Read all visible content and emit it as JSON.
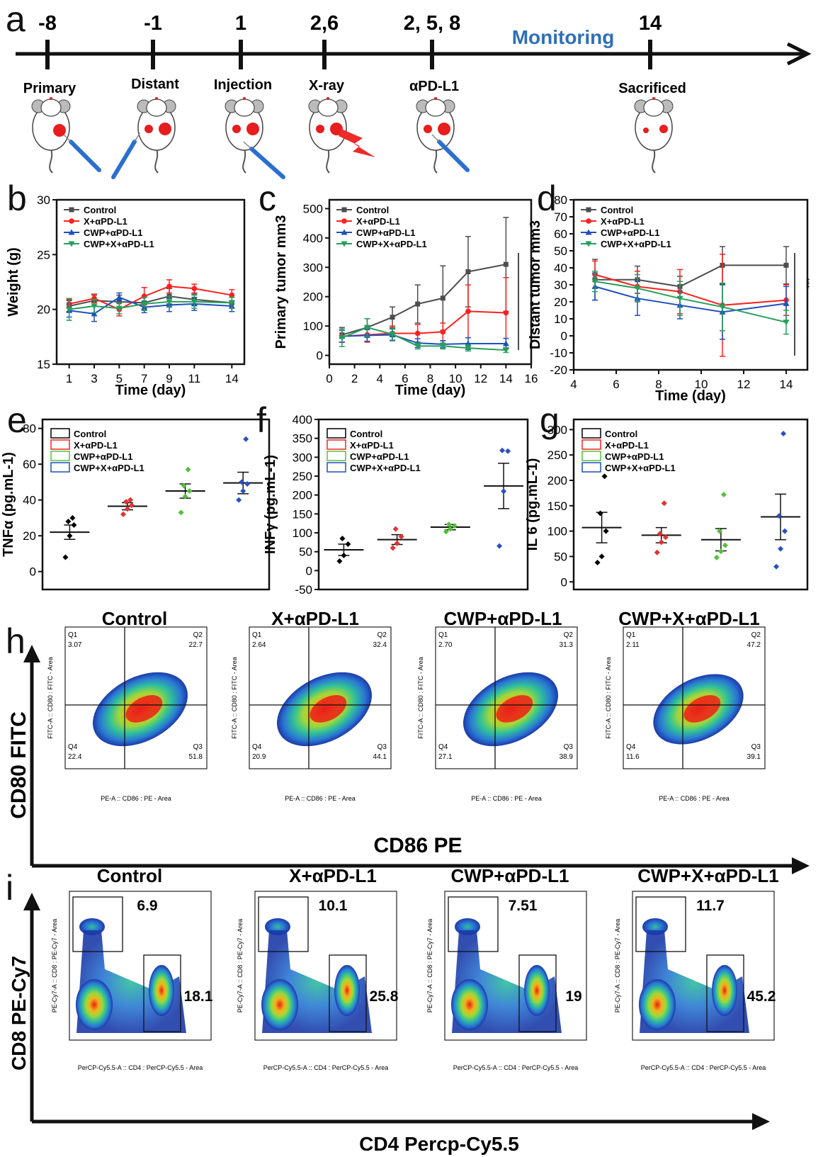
{
  "colors": {
    "control": "#4d4d4d",
    "x_apdl1": "#ff2020",
    "cwp_apdl1": "#1f4fbf",
    "cwp_x_apdl1": "#24a05a",
    "scatter_control": "#000000",
    "scatter_x": "#e53030",
    "scatter_cwp": "#55c03c",
    "scatter_cwpx": "#2c4fc0",
    "timeline_monitoring": "#2f6fb7"
  },
  "panels": {
    "a": {
      "letter": "a",
      "monitoring": "Monitoring",
      "events": [
        {
          "time": "-8",
          "label": "Primary"
        },
        {
          "time": "-1",
          "label": "Distant"
        },
        {
          "time": "1",
          "label": "Injection"
        },
        {
          "time": "2,6",
          "label": "X-ray"
        },
        {
          "time": "2, 5, 8",
          "label": "αPD-L1"
        },
        {
          "time": "14",
          "label": "Sacrificed"
        }
      ]
    },
    "h": {
      "letter": "h",
      "y_title": "CD80  FITC",
      "x_title": "CD86  PE",
      "x_axis_label": "PE-A :: CD86 : PE - Area",
      "y_axis_label": "FITC-A :: CD80 : FITC - Area",
      "quadrant_labels": [
        "Q1",
        "Q2",
        "Q3",
        "Q4"
      ]
    },
    "i": {
      "letter": "i",
      "y_title": "CD8 PE-Cy7",
      "x_title": "CD4 Percp-Cy5.5",
      "x_axis_label": "PerCP-Cy5.5-A :: CD4 : PerCP-Cy5.5 - Area",
      "y_axis_label": "PE-Cy7-A :: CD8 : PE-Cy7 - Area"
    }
  },
  "chart_data": [
    {
      "id": "b",
      "letter": "b",
      "type": "line",
      "xlabel": "Time (day)",
      "ylabel": "Weight (g)",
      "xlim": [
        0,
        15
      ],
      "ylim": [
        15,
        30
      ],
      "xticks": [
        1,
        3,
        5,
        7,
        9,
        11,
        14
      ],
      "yticks": [
        15,
        20,
        25,
        30
      ],
      "legend": "top-left",
      "series": [
        {
          "name": "Control",
          "marker": "square",
          "color": "#4d4d4d",
          "x": [
            1,
            3,
            5,
            7,
            9,
            11,
            14
          ],
          "y": [
            20.3,
            20.8,
            20.7,
            20.6,
            21.2,
            20.9,
            20.6
          ],
          "err": [
            0.5,
            0.5,
            0.6,
            0.6,
            0.7,
            0.5,
            0.5
          ]
        },
        {
          "name": "X+αPD-L1",
          "marker": "circle",
          "color": "#ff2020",
          "x": [
            1,
            3,
            5,
            7,
            9,
            11,
            14
          ],
          "y": [
            20.5,
            21.0,
            20.0,
            21.2,
            22.1,
            21.9,
            21.3
          ],
          "err": [
            0.4,
            0.4,
            0.6,
            0.8,
            0.6,
            0.4,
            0.5
          ]
        },
        {
          "name": "CWP+αPD-L1",
          "marker": "triangle",
          "color": "#1f4fbf",
          "x": [
            1,
            3,
            5,
            7,
            9,
            11,
            14
          ],
          "y": [
            19.9,
            19.6,
            21.1,
            20.2,
            20.4,
            20.5,
            20.3
          ],
          "err": [
            0.6,
            0.7,
            0.4,
            0.5,
            0.6,
            0.6,
            0.5
          ]
        },
        {
          "name": "CWP+X+αPD-L1",
          "marker": "tri-down",
          "color": "#24a05a",
          "x": [
            1,
            3,
            5,
            7,
            9,
            11,
            14
          ],
          "y": [
            20.0,
            20.3,
            20.1,
            20.5,
            20.7,
            20.7,
            20.6
          ],
          "err": [
            1.0,
            0.6,
            0.5,
            0.6,
            0.5,
            0.6,
            0.5
          ]
        }
      ]
    },
    {
      "id": "c",
      "letter": "c",
      "type": "line",
      "xlabel": "Time (day)",
      "ylabel": "Primary tumor mm3",
      "xlim": [
        0,
        16
      ],
      "ylim": [
        -30,
        530
      ],
      "xticks": [
        0,
        2,
        4,
        6,
        8,
        10,
        12,
        14,
        16
      ],
      "yticks": [
        0,
        100,
        200,
        300,
        400,
        500
      ],
      "annotation": "***",
      "legend": "top-left",
      "series": [
        {
          "name": "Control",
          "marker": "square",
          "color": "#4d4d4d",
          "x": [
            1,
            3,
            5,
            7,
            9,
            11,
            14
          ],
          "y": [
            70,
            95,
            130,
            175,
            195,
            285,
            310
          ],
          "err": [
            25,
            30,
            35,
            65,
            110,
            120,
            160
          ]
        },
        {
          "name": "X+αPD-L1",
          "marker": "circle",
          "color": "#ff2020",
          "x": [
            1,
            3,
            5,
            7,
            9,
            11,
            14
          ],
          "y": [
            65,
            70,
            75,
            75,
            80,
            150,
            145
          ],
          "err": [
            20,
            25,
            25,
            30,
            30,
            90,
            120
          ]
        },
        {
          "name": "CWP+αPD-L1",
          "marker": "triangle",
          "color": "#1f4fbf",
          "x": [
            1,
            3,
            5,
            7,
            9,
            11,
            14
          ],
          "y": [
            65,
            68,
            70,
            42,
            38,
            40,
            40
          ],
          "err": [
            20,
            20,
            20,
            15,
            12,
            20,
            18
          ]
        },
        {
          "name": "CWP+X+αPD-L1",
          "marker": "tri-down",
          "color": "#24a05a",
          "x": [
            1,
            3,
            5,
            7,
            9,
            11,
            14
          ],
          "y": [
            60,
            95,
            72,
            32,
            32,
            25,
            18
          ],
          "err": [
            30,
            30,
            20,
            10,
            10,
            10,
            8
          ]
        }
      ]
    },
    {
      "id": "d",
      "letter": "d",
      "type": "line",
      "xlabel": "Time (day)",
      "ylabel": "Distant tumor mm3",
      "xlim": [
        4,
        15
      ],
      "ylim": [
        -20,
        80
      ],
      "xticks": [
        4,
        6,
        8,
        10,
        12,
        14
      ],
      "yticks": [
        -20,
        -10,
        0,
        10,
        20,
        30,
        40,
        50,
        60,
        70,
        80
      ],
      "annotation": "***",
      "legend": "top-left",
      "series": [
        {
          "name": "Control",
          "marker": "square",
          "color": "#4d4d4d",
          "x": [
            5,
            7,
            9,
            11,
            14
          ],
          "y": [
            33,
            33,
            29,
            41.5,
            41.5
          ],
          "err": [
            12,
            8,
            6,
            11,
            11
          ]
        },
        {
          "name": "X+αPD-L1",
          "marker": "circle",
          "color": "#ff2020",
          "x": [
            5,
            7,
            9,
            11,
            14
          ],
          "y": [
            36,
            29,
            26,
            18,
            21
          ],
          "err": [
            8,
            9,
            13,
            30,
            9
          ]
        },
        {
          "name": "CWP+αPD-L1",
          "marker": "triangle",
          "color": "#1f4fbf",
          "x": [
            5,
            7,
            9,
            11,
            14
          ],
          "y": [
            29,
            22,
            18,
            14,
            19
          ],
          "err": [
            8,
            10,
            8,
            16,
            10
          ]
        },
        {
          "name": "CWP+X+αPD-L1",
          "marker": "tri-down",
          "color": "#24a05a",
          "x": [
            5,
            7,
            9,
            11,
            14
          ],
          "y": [
            32,
            28,
            22,
            17,
            8
          ],
          "err": [
            6,
            8,
            10,
            14,
            7
          ]
        }
      ]
    },
    {
      "id": "e",
      "letter": "e",
      "type": "scatter",
      "ylabel": "TNFα (pg.mL-1)",
      "ylim": [
        -10,
        85
      ],
      "yticks": [
        0,
        20,
        40,
        60,
        80
      ],
      "legend": "top-left",
      "groups": [
        {
          "name": "Control",
          "color": "#000000",
          "mean": 22,
          "sem": 4,
          "points": [
            8,
            20,
            26,
            28,
            30
          ]
        },
        {
          "name": "X+αPD-L1",
          "color": "#e53030",
          "mean": 36.5,
          "sem": 2,
          "points": [
            32,
            35,
            37,
            39,
            40
          ]
        },
        {
          "name": "CWP+αPD-L1",
          "color": "#55c03c",
          "mean": 45,
          "sem": 4,
          "points": [
            33,
            42,
            45,
            48,
            57
          ]
        },
        {
          "name": "CWP+X+αPD-L1",
          "color": "#2c4fc0",
          "mean": 49.5,
          "sem": 6,
          "points": [
            40,
            45,
            49,
            50,
            74
          ]
        }
      ]
    },
    {
      "id": "f",
      "letter": "f",
      "type": "scatter",
      "ylabel": "INFγ (pg.mL-1)",
      "ylim": [
        -50,
        400
      ],
      "yticks": [
        -50,
        0,
        50,
        100,
        150,
        200,
        250,
        300,
        350,
        400
      ],
      "legend": "top-left",
      "groups": [
        {
          "name": "Control",
          "color": "#000000",
          "mean": 55,
          "sem": 15,
          "points": [
            25,
            40,
            70,
            85
          ]
        },
        {
          "name": "X+αPD-L1",
          "color": "#e53030",
          "mean": 82,
          "sem": 13,
          "points": [
            60,
            72,
            90,
            110
          ]
        },
        {
          "name": "CWP+αPD-L1",
          "color": "#55c03c",
          "mean": 115,
          "sem": 7,
          "points": [
            103,
            110,
            118,
            122
          ]
        },
        {
          "name": "CWP+X+αPD-L1",
          "color": "#2c4fc0",
          "mean": 224,
          "sem": 60,
          "points": [
            65,
            210,
            316,
            318
          ]
        }
      ]
    },
    {
      "id": "g",
      "letter": "g",
      "type": "scatter",
      "ylabel": "IL 6 (pg.mL-1)",
      "ylim": [
        -15,
        320
      ],
      "yticks": [
        0,
        50,
        100,
        150,
        200,
        250,
        300
      ],
      "legend": "top-left",
      "groups": [
        {
          "name": "Control",
          "color": "#000000",
          "mean": 107,
          "sem": 30,
          "points": [
            38,
            50,
            100,
            135,
            208
          ]
        },
        {
          "name": "X+αPD-L1",
          "color": "#e53030",
          "mean": 92,
          "sem": 15,
          "points": [
            58,
            78,
            88,
            95,
            155
          ]
        },
        {
          "name": "CWP+αPD-L1",
          "color": "#55c03c",
          "mean": 83,
          "sem": 22,
          "points": [
            48,
            60,
            72,
            100,
            172
          ]
        },
        {
          "name": "CWP+X+αPD-L1",
          "color": "#2c4fc0",
          "mean": 128,
          "sem": 45,
          "points": [
            30,
            65,
            100,
            130,
            292
          ]
        }
      ]
    },
    {
      "id": "h",
      "type": "heatmap",
      "plots": [
        {
          "title": "Control",
          "q1": "3.07",
          "q2": "22.7",
          "q3": "51.8",
          "q4": "22.4"
        },
        {
          "title": "X+αPD-L1",
          "q1": "2.64",
          "q2": "32.4",
          "q3": "44.1",
          "q4": "20.9"
        },
        {
          "title": "CWP+αPD-L1",
          "q1": "2.70",
          "q2": "31.3",
          "q3": "38.9",
          "q4": "27.1"
        },
        {
          "title": "CWP+X+αPD-L1",
          "q1": "2.11",
          "q2": "47.2",
          "q3": "39.1",
          "q4": "11.6"
        }
      ]
    },
    {
      "id": "i",
      "type": "heatmap",
      "plots": [
        {
          "title": "Control",
          "cd8": "6.9",
          "cd4": "18.1"
        },
        {
          "title": "X+αPD-L1",
          "cd8": "10.1",
          "cd4": "25.8"
        },
        {
          "title": "CWP+αPD-L1",
          "cd8": "7.51",
          "cd4": "19"
        },
        {
          "title": "CWP+X+αPD-L1",
          "cd8": "11.7",
          "cd4": "45.2"
        }
      ]
    }
  ]
}
